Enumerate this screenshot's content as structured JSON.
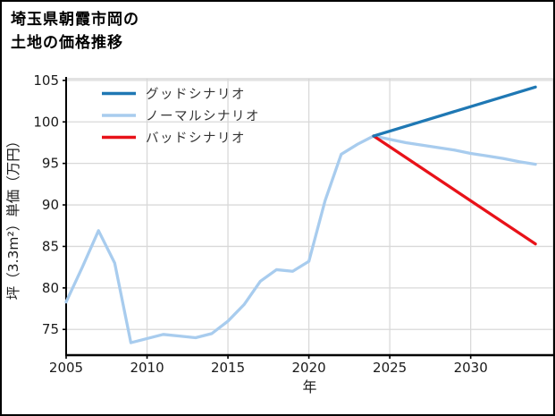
{
  "window": {
    "background": "#ffffff",
    "border_color": "#000000"
  },
  "title": {
    "line1": "埼玉県朝霞市岡の",
    "line2": "土地の価格推移",
    "full": "埼玉県朝霞市岡の土地の価格推移"
  },
  "chart_data": {
    "type": "line",
    "title": "埼玉県朝霞市岡の土地の価格推移",
    "xlabel": "年",
    "ylabel": "坪（3.3m²）単価（万円）",
    "xlim": [
      2005,
      2035.1
    ],
    "ylim": [
      71.9,
      105.2
    ],
    "xticks": [
      2005,
      2010,
      2015,
      2020,
      2025,
      2030
    ],
    "yticks": [
      75,
      80,
      85,
      90,
      95,
      100,
      105
    ],
    "grid": true,
    "legend_position": "upper-left",
    "legend_frame": false,
    "series": [
      {
        "name": "グッドシナリオ",
        "color": "#1f78b4",
        "x": [
          2024,
          2034
        ],
        "y": [
          98.3,
          104.2
        ]
      },
      {
        "name": "ノーマルシナリオ",
        "color": "#a8ccee",
        "x": [
          2005,
          2006,
          2007,
          2008,
          2009,
          2010,
          2011,
          2012,
          2013,
          2014,
          2015,
          2016,
          2017,
          2018,
          2019,
          2020,
          2021,
          2022,
          2023,
          2024,
          2025,
          2026,
          2027,
          2028,
          2029,
          2030,
          2031,
          2032,
          2033,
          2034
        ],
        "y": [
          78.3,
          82.5,
          86.9,
          83.0,
          73.4,
          73.9,
          74.4,
          74.2,
          74.0,
          74.5,
          76.0,
          78.0,
          80.8,
          82.2,
          82.0,
          83.2,
          90.5,
          96.1,
          97.3,
          98.3,
          97.9,
          97.5,
          97.2,
          96.9,
          96.6,
          96.2,
          95.9,
          95.6,
          95.2,
          94.9
        ]
      },
      {
        "name": "バッドシナリオ",
        "color": "#e81219",
        "x": [
          2024,
          2034
        ],
        "y": [
          98.3,
          85.3
        ]
      }
    ],
    "colors": {
      "grid": "#d9d9d9",
      "spine": "#000000",
      "minor_spine": "#d0d0d0",
      "tick_label": "#1a1a1a",
      "axis_label": "#1a1a1a",
      "legend_text": "#333333"
    }
  }
}
